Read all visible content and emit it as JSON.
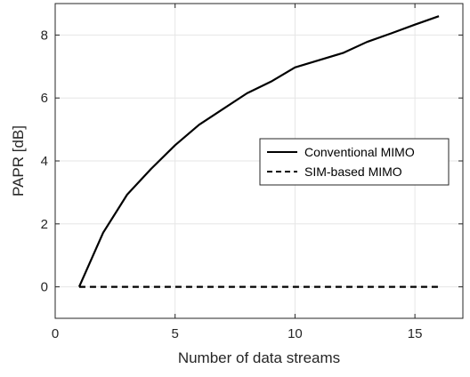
{
  "chart_data": {
    "type": "line",
    "title": "",
    "xlabel": "Number of data streams",
    "ylabel": "PAPR [dB]",
    "xlim": [
      0,
      17
    ],
    "ylim": [
      -1,
      9
    ],
    "xticks": [
      0,
      5,
      10,
      15
    ],
    "yticks": [
      0,
      2,
      4,
      6,
      8
    ],
    "grid": true,
    "legend": "center-right",
    "series": [
      {
        "name": "Conventional MIMO",
        "style": "solid",
        "color": "#000000",
        "x": [
          1,
          2,
          3,
          4,
          5,
          6,
          7,
          8,
          9,
          10,
          11,
          12,
          13,
          14,
          15,
          16
        ],
        "y": [
          0.0,
          1.72,
          2.93,
          3.75,
          4.5,
          5.15,
          5.65,
          6.15,
          6.52,
          6.97,
          7.2,
          7.43,
          7.78,
          8.05,
          8.33,
          8.6
        ]
      },
      {
        "name": "SIM-based MIMO",
        "style": "dashed",
        "color": "#000000",
        "x": [
          1,
          2,
          3,
          4,
          5,
          6,
          7,
          8,
          9,
          10,
          11,
          12,
          13,
          14,
          15,
          16
        ],
        "y": [
          0,
          0,
          0,
          0,
          0,
          0,
          0,
          0,
          0,
          0,
          0,
          0,
          0,
          0,
          0,
          0
        ]
      }
    ]
  }
}
